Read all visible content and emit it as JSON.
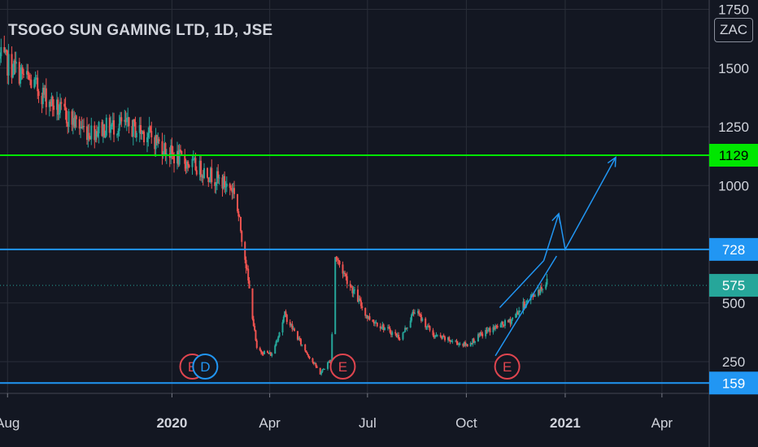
{
  "title": "TSOGO SUN GAMING LTD, 1D, JSE",
  "currency_button": "ZAC",
  "colors": {
    "background": "#131722",
    "grid": "#2a2e39",
    "text": "#d1d4dc",
    "up": "#26a69a",
    "down": "#ef5350",
    "hline_blue": "#2196f3",
    "hline_green": "#00e600",
    "badge_blue": "#2196f3",
    "badge_green": "#00e600",
    "badge_current": "#26a69a"
  },
  "chart_data": {
    "type": "candlestick",
    "ylim": [
      115,
      1790
    ],
    "xlim": [
      "2019-07-25",
      "2021-05-15"
    ],
    "y_ticks": [
      250,
      500,
      1000,
      1250,
      1500,
      1750
    ],
    "x_ticks": [
      {
        "date": "2019-08-01",
        "label": "Aug",
        "bold": false
      },
      {
        "date": "2020-01-01",
        "label": "2020",
        "bold": true
      },
      {
        "date": "2020-04-01",
        "label": "Apr",
        "bold": false
      },
      {
        "date": "2020-07-01",
        "label": "Jul",
        "bold": false
      },
      {
        "date": "2020-10-01",
        "label": "Oct",
        "bold": false
      },
      {
        "date": "2021-01-01",
        "label": "2021",
        "bold": true
      },
      {
        "date": "2021-04-01",
        "label": "Apr",
        "bold": false
      }
    ],
    "key_prices": [
      {
        "label": "1129",
        "value": 1129,
        "kind": "green"
      },
      {
        "label": "728",
        "value": 728,
        "kind": "blue"
      },
      {
        "label": "575",
        "value": 575,
        "kind": "current"
      },
      {
        "label": "159",
        "value": 159,
        "kind": "blue"
      }
    ],
    "horizontal_lines": [
      {
        "value": 1129,
        "color": "#00e600",
        "style": "solid"
      },
      {
        "value": 728,
        "color": "#2196f3",
        "style": "solid"
      },
      {
        "value": 575,
        "color": "#26a69a",
        "style": "dotted"
      },
      {
        "value": 159,
        "color": "#2196f3",
        "style": "solid"
      }
    ],
    "price_path": [
      {
        "date": "2019-07-25",
        "price": 1540
      },
      {
        "date": "2019-08-10",
        "price": 1490
      },
      {
        "date": "2019-09-01",
        "price": 1400
      },
      {
        "date": "2019-09-20",
        "price": 1310
      },
      {
        "date": "2019-10-15",
        "price": 1230
      },
      {
        "date": "2019-11-15",
        "price": 1260
      },
      {
        "date": "2019-12-10",
        "price": 1220
      },
      {
        "date": "2020-01-01",
        "price": 1130
      },
      {
        "date": "2020-02-01",
        "price": 1060
      },
      {
        "date": "2020-02-28",
        "price": 980
      },
      {
        "date": "2020-03-09",
        "price": 700
      },
      {
        "date": "2020-03-20",
        "price": 300
      },
      {
        "date": "2020-04-03",
        "price": 280
      },
      {
        "date": "2020-04-15",
        "price": 450
      },
      {
        "date": "2020-05-01",
        "price": 320
      },
      {
        "date": "2020-05-18",
        "price": 200
      },
      {
        "date": "2020-05-28",
        "price": 260
      },
      {
        "date": "2020-06-01",
        "price": 700
      },
      {
        "date": "2020-06-12",
        "price": 600
      },
      {
        "date": "2020-07-01",
        "price": 440
      },
      {
        "date": "2020-08-01",
        "price": 350
      },
      {
        "date": "2020-08-14",
        "price": 470
      },
      {
        "date": "2020-09-01",
        "price": 360
      },
      {
        "date": "2020-10-01",
        "price": 320
      },
      {
        "date": "2020-10-20",
        "price": 380
      },
      {
        "date": "2020-11-10",
        "price": 420
      },
      {
        "date": "2020-11-25",
        "price": 500
      },
      {
        "date": "2020-12-15",
        "price": 590
      }
    ],
    "events": [
      {
        "label": "E",
        "date": "2020-01-20",
        "kind": "earnings"
      },
      {
        "label": "D",
        "date": "2020-02-01",
        "kind": "dividend"
      },
      {
        "label": "E",
        "date": "2020-06-08",
        "kind": "earnings"
      },
      {
        "label": "E",
        "date": "2020-11-08",
        "kind": "earnings"
      }
    ],
    "channel_lines": [
      {
        "points": [
          {
            "date": "2020-11-01",
            "price": 480
          },
          {
            "date": "2020-12-12",
            "price": 680
          }
        ]
      },
      {
        "points": [
          {
            "date": "2020-10-28",
            "price": 275
          },
          {
            "date": "2020-12-24",
            "price": 700
          }
        ]
      }
    ],
    "projection_arrow": {
      "points": [
        {
          "date": "2020-12-12",
          "price": 680
        },
        {
          "date": "2020-12-26",
          "price": 880
        },
        {
          "date": "2021-01-01",
          "price": 728
        },
        {
          "date": "2021-02-17",
          "price": 1120
        }
      ],
      "arrowheads": [
        1,
        3
      ]
    }
  }
}
